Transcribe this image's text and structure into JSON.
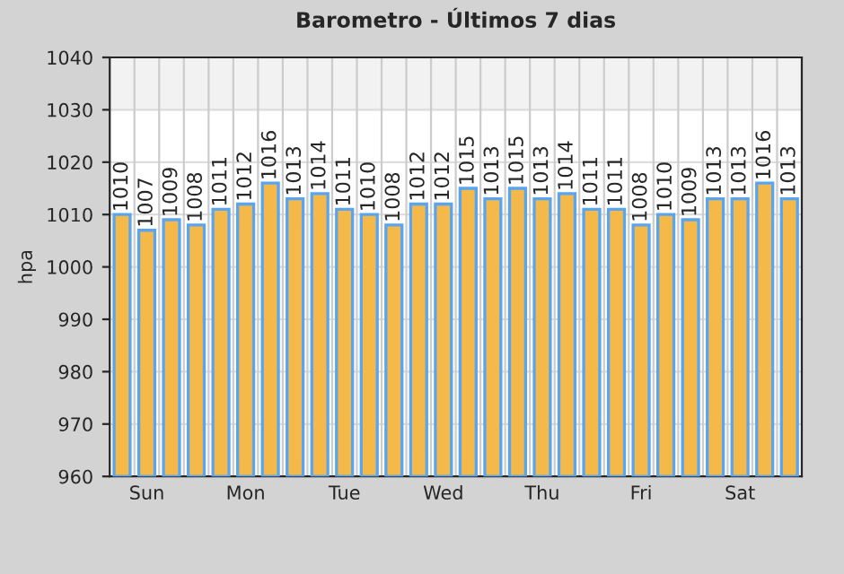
{
  "chart_data": {
    "type": "bar",
    "title": "Barometro - Últimos 7 dias",
    "ylabel": "hpa",
    "categories": [
      null,
      "Sun",
      null,
      null,
      null,
      "Mon",
      null,
      null,
      null,
      "Tue",
      null,
      null,
      null,
      "Wed",
      null,
      null,
      null,
      "Thu",
      null,
      null,
      null,
      "Fri",
      null,
      null,
      null,
      "Sat",
      null,
      null
    ],
    "values": [
      1010,
      1007,
      1009,
      1008,
      1011,
      1012,
      1016,
      1013,
      1014,
      1011,
      1010,
      1008,
      1012,
      1012,
      1015,
      1013,
      1015,
      1013,
      1014,
      1011,
      1011,
      1008,
      1010,
      1009,
      1013,
      1013,
      1016,
      1013
    ],
    "color": "#f5b94a",
    "ylim": [
      960,
      1040
    ],
    "yticks": [
      960,
      970,
      980,
      990,
      1000,
      1010,
      1020,
      1030,
      1040
    ],
    "bands": [
      {
        "axis": "y",
        "from": 1030,
        "to": 1040,
        "color": "#f2f2f2"
      }
    ],
    "grid": true,
    "data_labels": true
  }
}
